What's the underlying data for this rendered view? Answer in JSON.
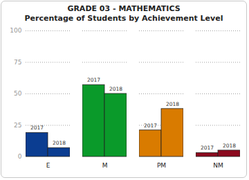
{
  "chart_data": {
    "type": "bar",
    "title": "GRADE 03 - MATHEMATICS",
    "subtitle": "Percentage of Students by Achievement Level",
    "categories": [
      "E",
      "M",
      "PM",
      "NM"
    ],
    "series": [
      {
        "name": "2017",
        "values": [
          19,
          57,
          21,
          3
        ],
        "colors": [
          "#0b3d91",
          "#0a9a2a",
          "#d97b00",
          "#8b0a1e"
        ]
      },
      {
        "name": "2018",
        "values": [
          7,
          50,
          38,
          5
        ],
        "colors": [
          "#0b3d91",
          "#0a9a2a",
          "#d97b00",
          "#8b0a1e"
        ]
      }
    ],
    "ylim": [
      0,
      100
    ],
    "yticks": [
      0,
      25,
      50,
      75,
      100
    ],
    "grid": true
  }
}
